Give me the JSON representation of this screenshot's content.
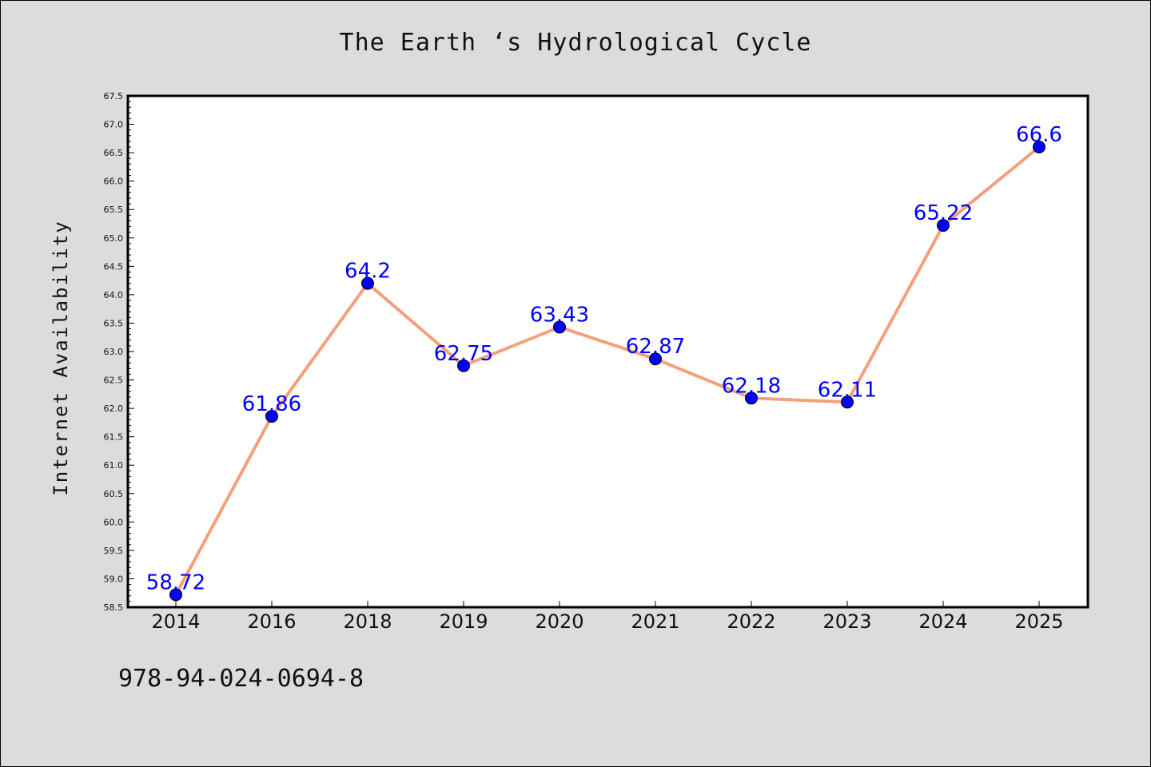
{
  "chart_data": {
    "type": "line",
    "title": "The Earth ‘s Hydrological Cycle",
    "xlabel": "",
    "ylabel": "Internet Availability",
    "categories": [
      "2014",
      "2016",
      "2018",
      "2019",
      "2020",
      "2021",
      "2022",
      "2023",
      "2024",
      "2025"
    ],
    "values": [
      58.72,
      61.86,
      64.2,
      62.75,
      63.43,
      62.87,
      62.18,
      62.11,
      65.22,
      66.6
    ],
    "data_labels": [
      "58.72",
      "61.86",
      "64.2",
      "62.75",
      "63.43",
      "62.87",
      "62.18",
      "62.11",
      "65.22",
      "66.6"
    ],
    "ylim": [
      58.5,
      67.5
    ],
    "yticks": [
      "58.5",
      "59.0",
      "59.5",
      "60.0",
      "60.5",
      "61.0",
      "61.5",
      "62.0",
      "62.5",
      "63.0",
      "63.5",
      "64.0",
      "64.5",
      "65.0",
      "65.5",
      "66.0",
      "66.5",
      "67.0",
      "67.5"
    ],
    "grid": false,
    "legend": "none",
    "colors": {
      "line": "#f4a07c",
      "marker": "#0000ff",
      "label": "#0000ff",
      "background": "#dcdcdc",
      "plot_background": "#ffffff"
    }
  },
  "footnote": "978-94-024-0694-8"
}
